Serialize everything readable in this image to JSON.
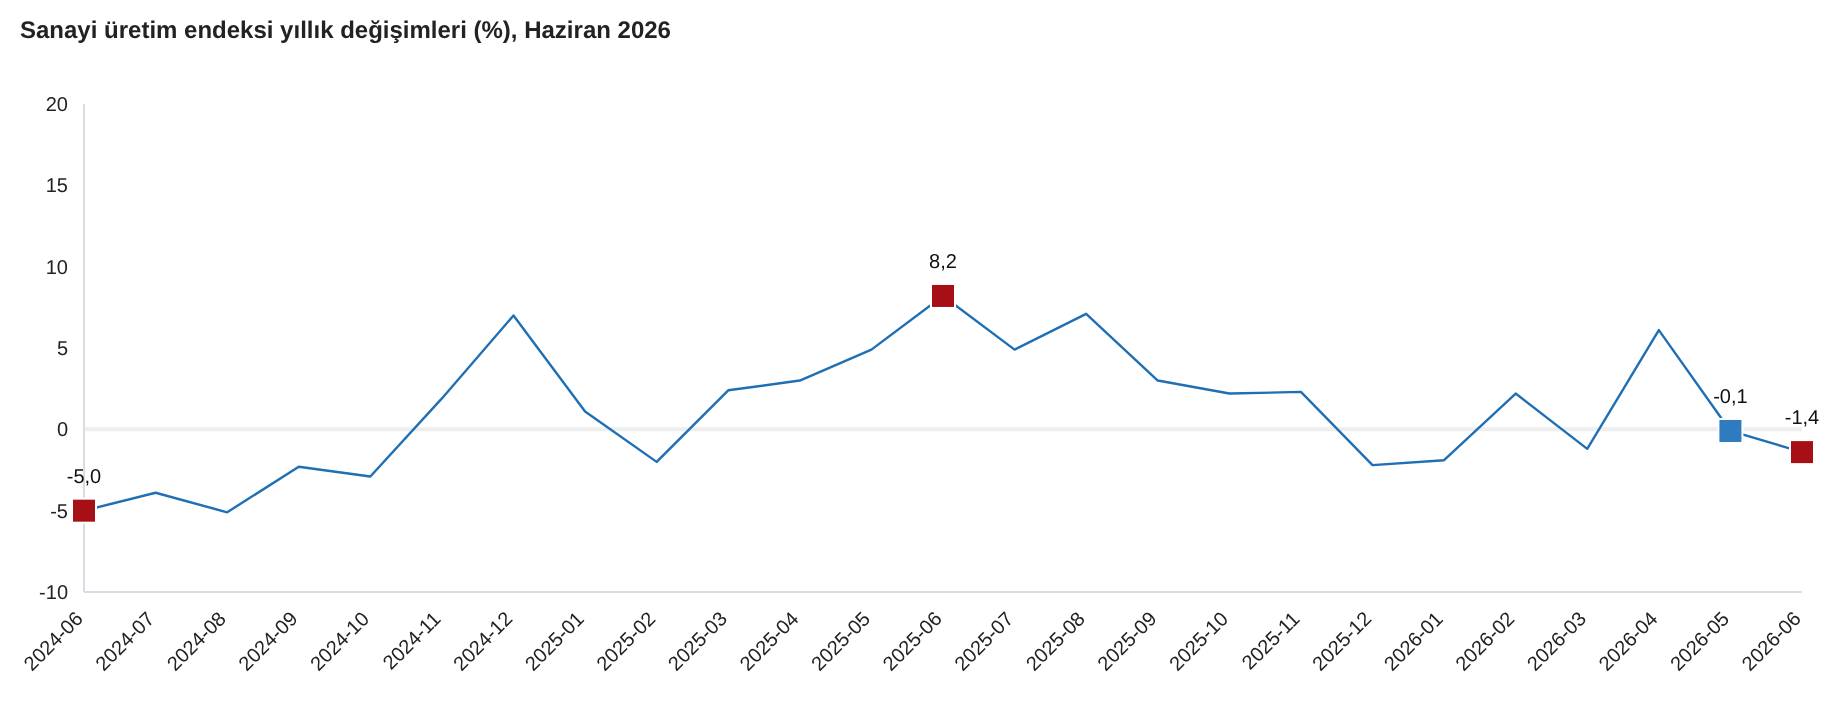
{
  "chart_data": {
    "type": "line",
    "title": "Sanayi üretim endeksi yıllık değişimleri (%), Haziran 2026",
    "categories": [
      "2024-06",
      "2024-07",
      "2024-08",
      "2024-09",
      "2024-10",
      "2024-11",
      "2024-12",
      "2025-01",
      "2025-02",
      "2025-03",
      "2025-04",
      "2025-05",
      "2025-06",
      "2025-07",
      "2025-08",
      "2025-09",
      "2025-10",
      "2025-11",
      "2025-12",
      "2026-01",
      "2026-02",
      "2026-03",
      "2026-04",
      "2026-05",
      "2026-06"
    ],
    "series": [
      {
        "color": "#1f6fb5",
        "values": [
          -5.0,
          -3.9,
          -5.1,
          -2.3,
          -2.9,
          1.9,
          7.0,
          1.1,
          -2.0,
          2.4,
          3.0,
          4.9,
          8.2,
          4.9,
          7.1,
          3.0,
          2.2,
          2.3,
          -2.2,
          -1.9,
          2.2,
          -1.2,
          6.1,
          -0.1,
          -1.4
        ]
      },
      {
        "type": "scatter",
        "marker": "square",
        "values": [
          -5.0,
          null,
          null,
          null,
          null,
          null,
          null,
          null,
          null,
          null,
          null,
          null,
          8.2,
          null,
          null,
          null,
          null,
          null,
          null,
          null,
          null,
          null,
          null,
          -0.1,
          -1.4
        ],
        "colors": [
          "#a50f15",
          null,
          null,
          null,
          null,
          null,
          null,
          null,
          null,
          null,
          null,
          null,
          "#a50f15",
          null,
          null,
          null,
          null,
          null,
          null,
          null,
          null,
          null,
          null,
          "#2e7bbf",
          "#a50f15"
        ],
        "value_labels": [
          "-5,0",
          null,
          null,
          null,
          null,
          null,
          null,
          null,
          null,
          null,
          null,
          null,
          "8,2",
          null,
          null,
          null,
          null,
          null,
          null,
          null,
          null,
          null,
          null,
          "-0,1",
          "-1,4"
        ]
      }
    ],
    "grid": false,
    "legend": false,
    "ylim": [
      -10,
      20
    ],
    "yticks": [
      -10,
      -5,
      0,
      5,
      10,
      15,
      20
    ],
    "ref_lines": [
      {
        "axis": "y",
        "value": 0,
        "color": "#eeeeee"
      }
    ]
  }
}
